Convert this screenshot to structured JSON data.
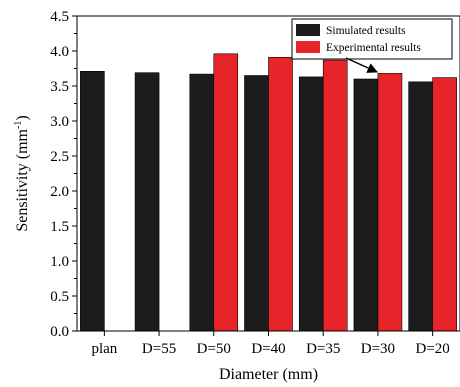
{
  "chart_data": {
    "type": "bar",
    "xlabel": "Diameter (mm)",
    "ylabel": "Sensitivity (mm",
    "ylabel_sup": "-1",
    "ylabel_close": ")",
    "categories": [
      "plan",
      "D=55",
      "D=50",
      "D=40",
      "D=35",
      "D=30",
      "D=20"
    ],
    "series": [
      {
        "name": "Simulated results",
        "color": "#1c1c1c",
        "values": [
          3.71,
          3.69,
          3.67,
          3.65,
          3.63,
          3.6,
          3.56
        ]
      },
      {
        "name": "Experimental results",
        "color": "#e8242b",
        "values": [
          null,
          null,
          3.96,
          3.91,
          3.87,
          3.68,
          3.62
        ]
      }
    ],
    "ylim": [
      0,
      4.5
    ],
    "yticks": [
      "0.0",
      "0.5",
      "1.0",
      "1.5",
      "2.0",
      "2.5",
      "3.0",
      "3.5",
      "4.0",
      "4.5"
    ],
    "grid": false,
    "legend_position": "top-right",
    "annotation": "arrow from legend to D=30 experimental bar"
  }
}
